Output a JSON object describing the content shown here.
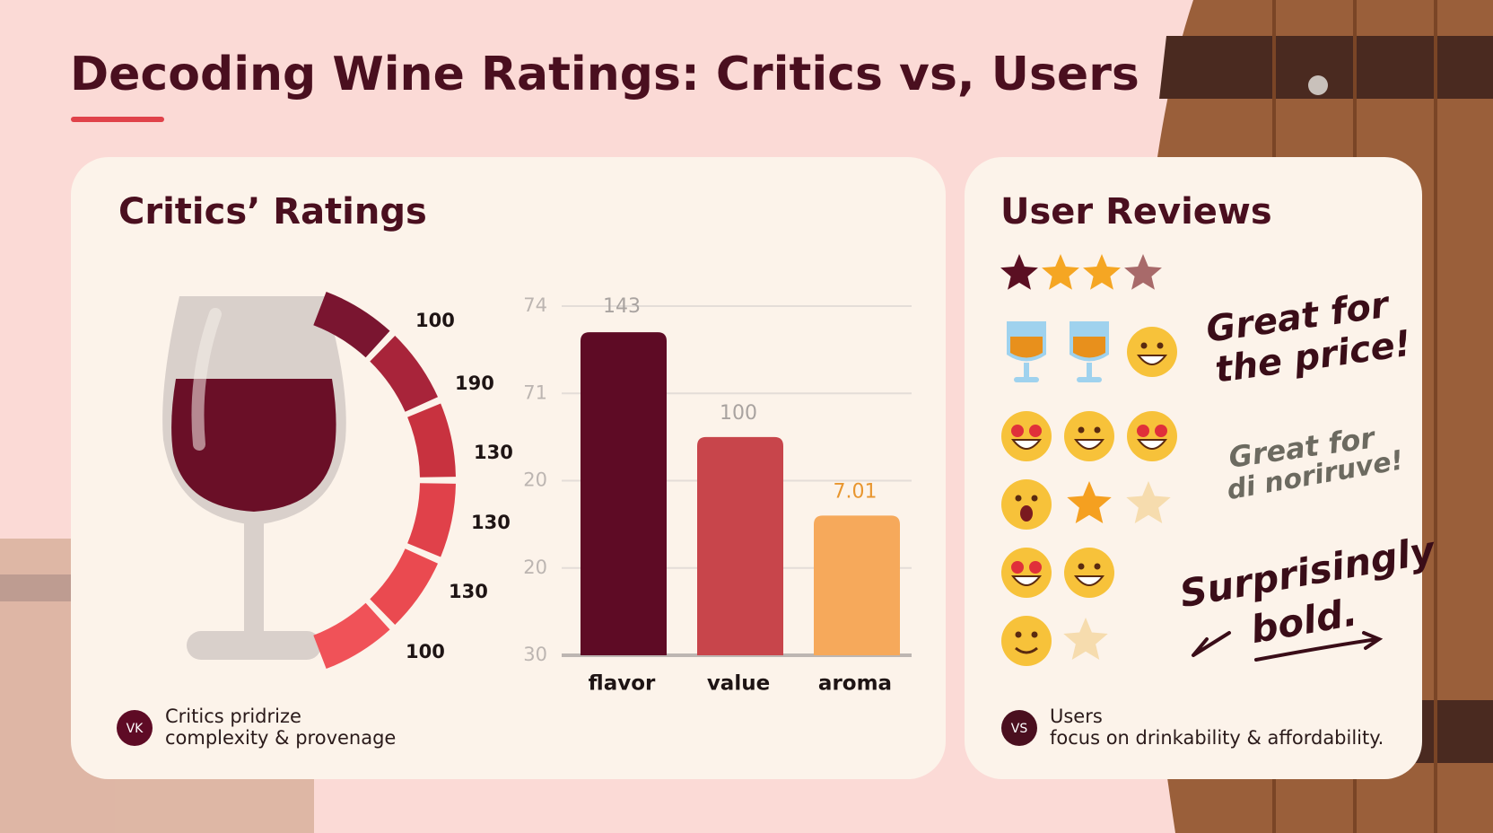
{
  "title": "Decoding Wine Ratings: Critics vs, Users",
  "critics": {
    "heading": "Critics’ Ratings",
    "gauge_labels": [
      "100",
      "190",
      "130",
      "130",
      "130",
      "100"
    ],
    "chart": {
      "categories": [
        "flavor",
        "value",
        "aroma"
      ],
      "bar_heights": [
        3.7,
        2.5,
        1.6
      ],
      "bar_labels": [
        "143",
        "100",
        "7.01"
      ],
      "colors": [
        "#5e0b25",
        "#c8454b",
        "#f6a95b"
      ],
      "label_colors": [
        "#a9a3a0",
        "#a9a3a0",
        "#e8962f"
      ],
      "axis_labels": [
        "74",
        "71",
        "20",
        "20",
        "30"
      ]
    },
    "badge": "VK",
    "note": [
      "Critics pridrize",
      "complexity & provenage"
    ]
  },
  "users": {
    "heading": "User Reviews",
    "notes": [
      [
        "Great for",
        "the price!"
      ],
      [
        "Great for",
        "di noriruve!"
      ],
      [
        "Surprisingly",
        "bold."
      ]
    ],
    "badge": "VS",
    "note": [
      "Users",
      "focus on drinkability & affordability."
    ]
  }
}
